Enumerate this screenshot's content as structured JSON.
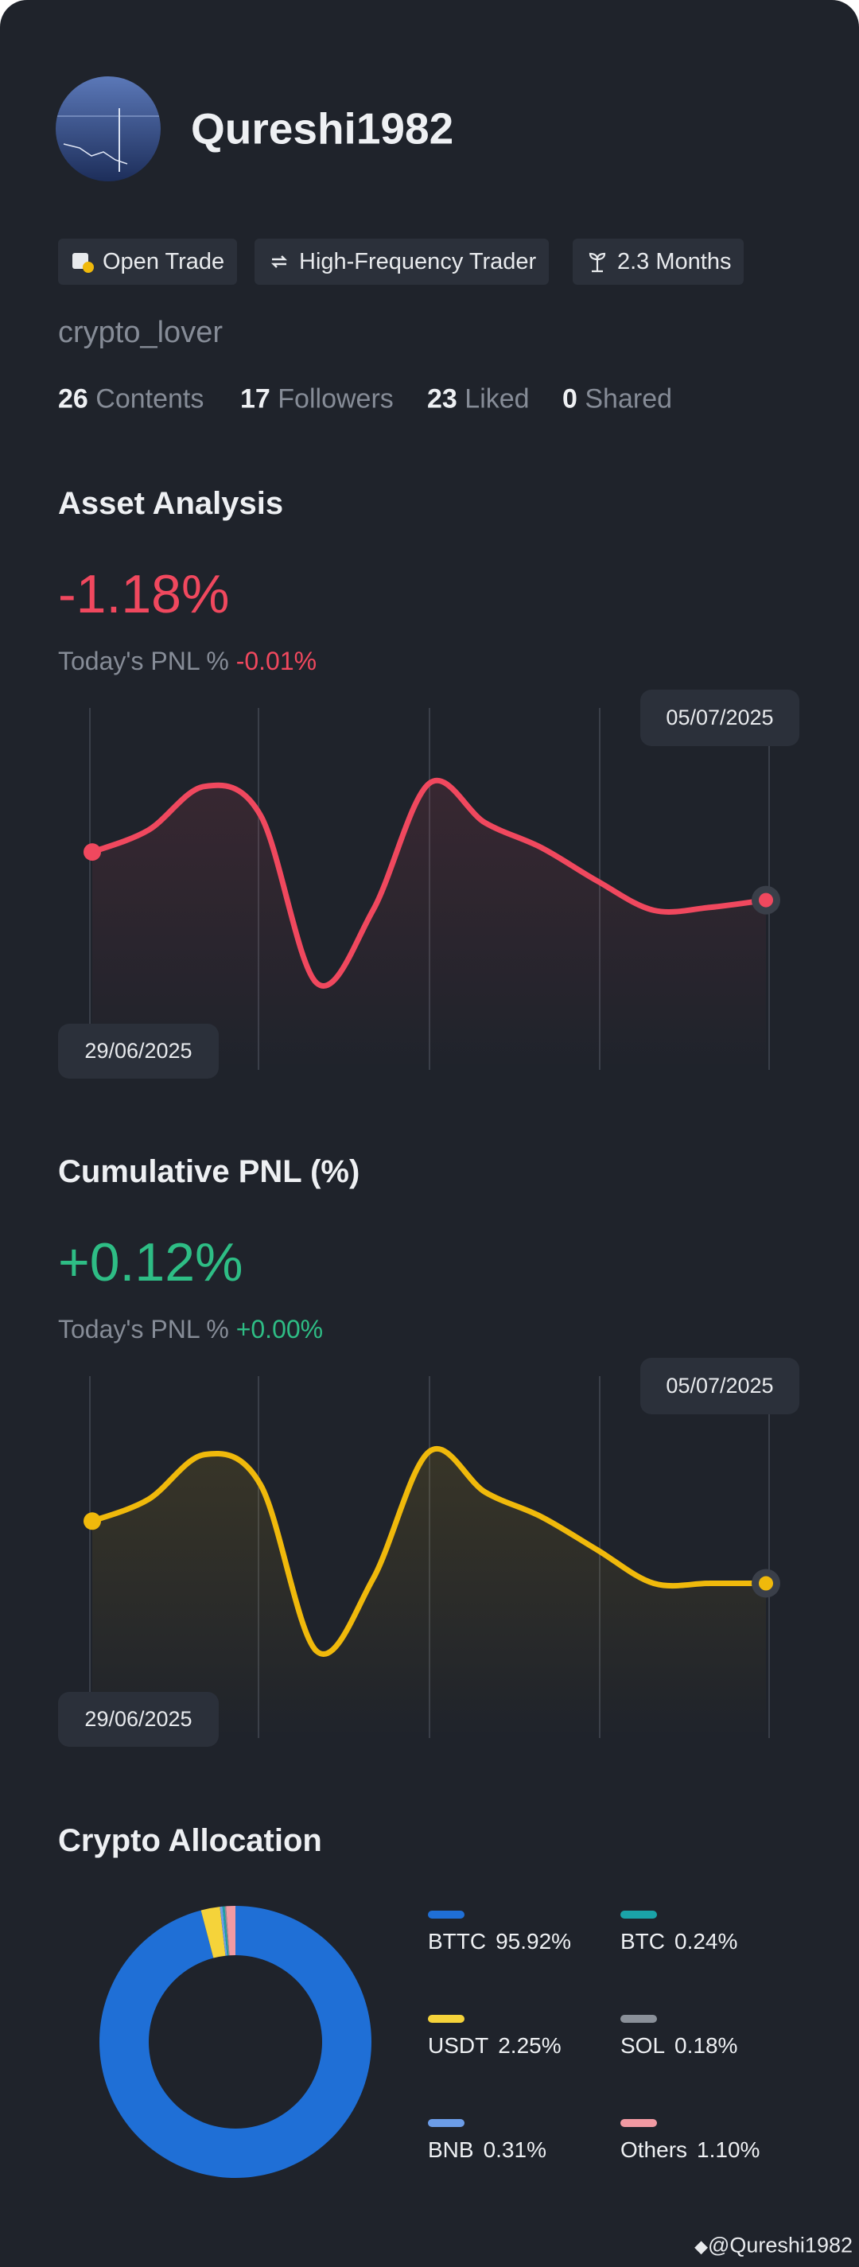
{
  "profile": {
    "username": "Qureshi1982",
    "tags": [
      "Open Trade",
      "High-Frequency Trader",
      "2.3 Months"
    ],
    "bio": "crypto_lover",
    "stats": [
      {
        "value": 26,
        "label": "Contents"
      },
      {
        "value": 17,
        "label": "Followers"
      },
      {
        "value": 23,
        "label": "Liked"
      },
      {
        "value": 0,
        "label": "Shared"
      }
    ]
  },
  "asset_analysis": {
    "title": "Asset Analysis",
    "value": "-1.18%",
    "today_label": "Today's PNL %",
    "today_value": "-0.01%",
    "chart": {
      "type": "line",
      "color": "#f0485e",
      "start_label": "29/06/2025",
      "end_label": "05/07/2025",
      "values": [
        110,
        125,
        155,
        135,
        20,
        70,
        157,
        130,
        113,
        90,
        70,
        72,
        77
      ]
    }
  },
  "cumulative_pnl": {
    "title": "Cumulative PNL (%)",
    "value": "+0.12%",
    "today_label": "Today's PNL %",
    "today_value": "+0.00%",
    "chart": {
      "type": "line",
      "color": "#f0b90b",
      "start_label": "29/06/2025",
      "end_label": "05/07/2025",
      "values": [
        110,
        125,
        156,
        135,
        20,
        70,
        158,
        130,
        113,
        90,
        67,
        67,
        67
      ]
    }
  },
  "allocation": {
    "title": "Crypto Allocation",
    "chart": {
      "type": "pie",
      "series": [
        {
          "name": "BTTC",
          "color": "#1f6fd6",
          "value": 95.92,
          "value_label": "95.92%"
        },
        {
          "name": "USDT",
          "color": "#f5d33a",
          "value": 2.25,
          "value_label": "2.25%"
        },
        {
          "name": "BNB",
          "color": "#6c9de8",
          "value": 0.31,
          "value_label": "0.31%"
        },
        {
          "name": "BTC",
          "color": "#1aa3a8",
          "value": 0.24,
          "value_label": "0.24%"
        },
        {
          "name": "SOL",
          "color": "#8a9099",
          "value": 0.18,
          "value_label": "0.18%"
        },
        {
          "name": "Others",
          "color": "#f19aa3",
          "value": 1.1,
          "value_label": "1.10%"
        }
      ]
    }
  },
  "watermark": "@Qureshi1982"
}
